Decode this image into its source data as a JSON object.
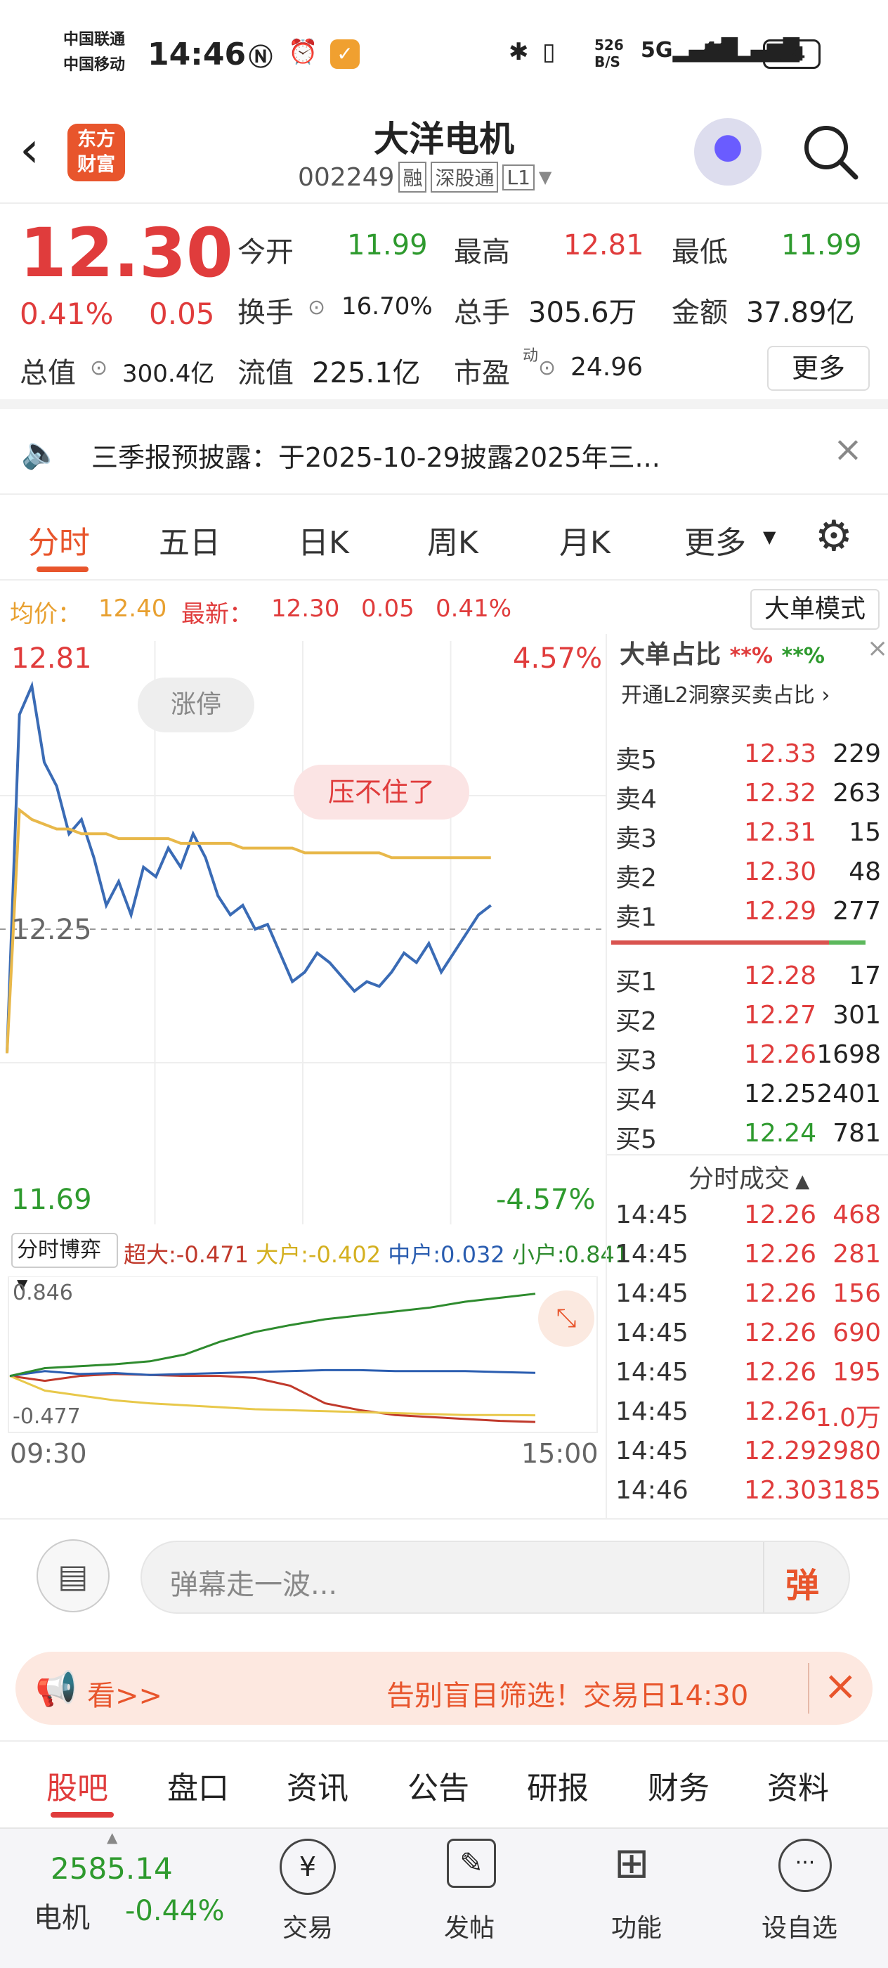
{
  "status_bar": {
    "carrier1": "中国联通",
    "carrier2": "中国移动",
    "time": "14:46",
    "net_speed_top": "526",
    "net_speed_bottom": "B/S",
    "battery": "64"
  },
  "header": {
    "logo_line1": "东方",
    "logo_line2": "财富",
    "stock_name": "大洋电机",
    "stock_code": "002249",
    "tags": [
      "融",
      "深股通",
      "L1"
    ]
  },
  "quote": {
    "price": "12.30",
    "change_pct": "0.41%",
    "change_amt": "0.05",
    "open_label": "今开",
    "open_value": "11.99",
    "high_label": "最高",
    "high_value": "12.81",
    "low_label": "最低",
    "low_value": "11.99",
    "turnover_label": "换手",
    "turnover_value": "16.70%",
    "volume_label": "总手",
    "volume_value": "305.6万",
    "amount_label": "金额",
    "amount_value": "37.89亿",
    "mktcap_label": "总值",
    "mktcap_value": "300.4亿",
    "float_label": "流值",
    "float_value": "225.1亿",
    "pe_label": "市盈",
    "pe_sup": "动",
    "pe_value": "24.96",
    "more_button": "更多"
  },
  "notice": {
    "text": "三季报预披露：于2025-10-29披露2025年三..."
  },
  "tabs": {
    "items": [
      "分时",
      "五日",
      "日K",
      "周K",
      "月K",
      "更多"
    ],
    "active": "分时"
  },
  "chart_info": {
    "avg_label": "均价：",
    "avg_value": "12.40",
    "latest_label": "最新：",
    "latest_value": "12.30",
    "chg": "0.05",
    "chg_pct": "0.41%",
    "big_order_button": "大单模式"
  },
  "chart_data": [
    {
      "type": "line",
      "title": "",
      "xlabel": "",
      "ylabel": "",
      "x_labels": [
        "09:30",
        "15:00"
      ],
      "ylim": [
        11.69,
        12.81
      ],
      "y_ticks": [
        "12.81",
        "12.25",
        "11.69"
      ],
      "pct_ticks": [
        "4.57%",
        "-4.57%"
      ],
      "series": [
        {
          "name": "price",
          "color": "#3a6bb5",
          "values": [
            11.99,
            12.7,
            12.76,
            12.6,
            12.55,
            12.45,
            12.48,
            12.4,
            12.3,
            12.35,
            12.28,
            12.38,
            12.36,
            12.42,
            12.38,
            12.45,
            12.4,
            12.32,
            12.28,
            12.3,
            12.25,
            12.26,
            12.2,
            12.14,
            12.16,
            12.2,
            12.18,
            12.15,
            12.12,
            12.14,
            12.13,
            12.16,
            12.2,
            12.18,
            12.22,
            12.16,
            12.2,
            12.24,
            12.28,
            12.3
          ]
        },
        {
          "name": "avg",
          "color": "#e8b84a",
          "values": [
            11.99,
            12.5,
            12.48,
            12.47,
            12.46,
            12.46,
            12.45,
            12.45,
            12.45,
            12.44,
            12.44,
            12.44,
            12.44,
            12.44,
            12.43,
            12.43,
            12.43,
            12.43,
            12.43,
            12.42,
            12.42,
            12.42,
            12.42,
            12.42,
            12.41,
            12.41,
            12.41,
            12.41,
            12.41,
            12.41,
            12.41,
            12.4,
            12.4,
            12.4,
            12.4,
            12.4,
            12.4,
            12.4,
            12.4,
            12.4
          ]
        }
      ],
      "annotations": [
        "涨停",
        "压不住了"
      ]
    },
    {
      "type": "line",
      "title": "分时博弈",
      "ylim": [
        -0.477,
        0.846
      ],
      "y_ticks": [
        "0.846",
        "-0.477"
      ],
      "x_labels": [
        "09:30",
        "15:00"
      ],
      "series": [
        {
          "name": "超大",
          "value_label": "-0.471",
          "color": "#c0392b",
          "values": [
            0.0,
            -0.05,
            0.0,
            0.02,
            0.01,
            0.0,
            0.0,
            -0.02,
            -0.1,
            -0.28,
            -0.35,
            -0.4,
            -0.42,
            -0.44,
            -0.46,
            -0.471
          ]
        },
        {
          "name": "大户",
          "value_label": "-0.402",
          "color": "#e8c84a",
          "values": [
            0.0,
            -0.15,
            -0.2,
            -0.25,
            -0.28,
            -0.3,
            -0.32,
            -0.34,
            -0.35,
            -0.36,
            -0.37,
            -0.38,
            -0.39,
            -0.4,
            -0.4,
            -0.402
          ]
        },
        {
          "name": "中户",
          "value_label": "0.032",
          "color": "#2a5db0",
          "values": [
            0.0,
            0.05,
            0.02,
            0.03,
            0.01,
            0.02,
            0.03,
            0.04,
            0.05,
            0.06,
            0.06,
            0.05,
            0.05,
            0.05,
            0.04,
            0.032
          ]
        },
        {
          "name": "小户",
          "value_label": "0.841",
          "color": "#2e8b2e",
          "values": [
            0.0,
            0.08,
            0.1,
            0.12,
            0.15,
            0.22,
            0.35,
            0.45,
            0.52,
            0.58,
            0.62,
            0.66,
            0.7,
            0.76,
            0.8,
            0.841
          ]
        }
      ]
    }
  ],
  "l2_panel": {
    "title": "大单占比",
    "stars": "**%",
    "link": "开通L2洞察买卖占比"
  },
  "order_book": {
    "asks": [
      {
        "label": "卖5",
        "price": "12.33",
        "vol": "229"
      },
      {
        "label": "卖4",
        "price": "12.32",
        "vol": "263"
      },
      {
        "label": "卖3",
        "price": "12.31",
        "vol": "15"
      },
      {
        "label": "卖2",
        "price": "12.30",
        "vol": "48"
      },
      {
        "label": "卖1",
        "price": "12.29",
        "vol": "277"
      }
    ],
    "bids": [
      {
        "label": "买1",
        "price": "12.28",
        "vol": "17"
      },
      {
        "label": "买2",
        "price": "12.27",
        "vol": "301"
      },
      {
        "label": "买3",
        "price": "12.26",
        "vol": "1698"
      },
      {
        "label": "买4",
        "price": "12.25",
        "vol": "2401"
      },
      {
        "label": "买5",
        "price": "12.24",
        "vol": "781"
      }
    ]
  },
  "trades": {
    "title": "分时成交",
    "rows": [
      {
        "time": "14:45",
        "price": "12.26",
        "vol": "468"
      },
      {
        "time": "14:45",
        "price": "12.26",
        "vol": "281"
      },
      {
        "time": "14:45",
        "price": "12.26",
        "vol": "156"
      },
      {
        "time": "14:45",
        "price": "12.26",
        "vol": "690"
      },
      {
        "time": "14:45",
        "price": "12.26",
        "vol": "195"
      },
      {
        "time": "14:45",
        "price": "12.26",
        "vol": "1.0万"
      },
      {
        "time": "14:45",
        "price": "12.29",
        "vol": "2980"
      },
      {
        "time": "14:46",
        "price": "12.30",
        "vol": "3185"
      }
    ]
  },
  "danmu": {
    "placeholder": "弹幕走一波...",
    "button": "弹"
  },
  "ad_banner": {
    "left": "看>>",
    "text": "告别盲目筛选！交易日14:30"
  },
  "bottom_tabs": {
    "items": [
      "股吧",
      "盘口",
      "资讯",
      "公告",
      "研报",
      "财务",
      "资料"
    ],
    "active": "股吧"
  },
  "bottom_nav": {
    "index_value": "2585.14",
    "index_name": "电机",
    "index_change": "-0.44%",
    "items": [
      "交易",
      "发帖",
      "功能",
      "设自选"
    ]
  }
}
